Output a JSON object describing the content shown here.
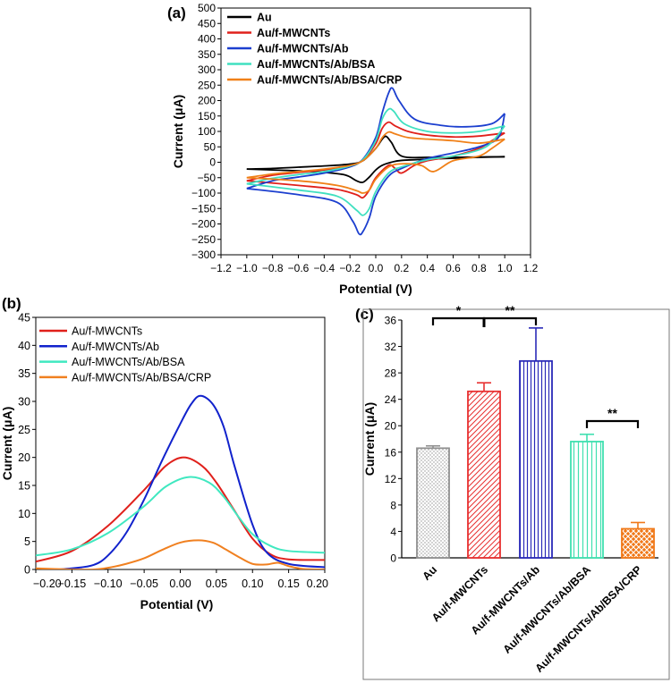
{
  "chart_data": [
    {
      "id": "a",
      "panel_label": "(a)",
      "type": "line",
      "title": "",
      "xlabel": "Potential (V)",
      "ylabel": "Current (μA)",
      "xlim": [
        -1.2,
        1.2
      ],
      "ylim": [
        -300,
        500
      ],
      "xticks": [
        "−1.2",
        "−1.0",
        "−0.8",
        "−0.6",
        "−0.4",
        "−0.2",
        "0.0",
        "0.2",
        "0.4",
        "0.6",
        "0.8",
        "1.0",
        "1.2"
      ],
      "yticks": [
        "−300",
        "−250",
        "−200",
        "−150",
        "−100",
        "−50",
        "0",
        "50",
        "100",
        "150",
        "200",
        "250",
        "300",
        "350",
        "400",
        "450",
        "500"
      ],
      "legend_position": "top-left",
      "series": [
        {
          "name": "Au",
          "color": "#000000",
          "forward": [
            [
              -1,
              -22
            ],
            [
              -0.8,
              -20
            ],
            [
              -0.6,
              -16
            ],
            [
              -0.4,
              -12
            ],
            [
              -0.2,
              -6
            ],
            [
              -0.1,
              5
            ],
            [
              0,
              45
            ],
            [
              0.05,
              75
            ],
            [
              0.08,
              84
            ],
            [
              0.12,
              65
            ],
            [
              0.2,
              20
            ],
            [
              0.4,
              16
            ],
            [
              0.6,
              16
            ],
            [
              0.8,
              17
            ],
            [
              1,
              18
            ]
          ],
          "reverse": [
            [
              1,
              18
            ],
            [
              0.8,
              16
            ],
            [
              0.6,
              13
            ],
            [
              0.4,
              10
            ],
            [
              0.2,
              6
            ],
            [
              0.12,
              0
            ],
            [
              0.05,
              -10
            ],
            [
              0,
              -25
            ],
            [
              -0.05,
              -48
            ],
            [
              -0.1,
              -65
            ],
            [
              -0.15,
              -60
            ],
            [
              -0.25,
              -40
            ],
            [
              -0.5,
              -30
            ],
            [
              -0.8,
              -25
            ],
            [
              -1,
              -22
            ]
          ]
        },
        {
          "name": "Au/f-MWCNTs",
          "color": "#e0201b",
          "forward": [
            [
              -1,
              -60
            ],
            [
              -0.8,
              -42
            ],
            [
              -0.6,
              -33
            ],
            [
              -0.4,
              -25
            ],
            [
              -0.2,
              -12
            ],
            [
              -0.1,
              8
            ],
            [
              0,
              60
            ],
            [
              0.05,
              110
            ],
            [
              0.1,
              130
            ],
            [
              0.15,
              118
            ],
            [
              0.25,
              100
            ],
            [
              0.4,
              88
            ],
            [
              0.6,
              82
            ],
            [
              0.8,
              85
            ],
            [
              1,
              95
            ]
          ],
          "reverse": [
            [
              1,
              95
            ],
            [
              0.9,
              70
            ],
            [
              0.8,
              45
            ],
            [
              0.6,
              20
            ],
            [
              0.4,
              5
            ],
            [
              0.3,
              -10
            ],
            [
              0.2,
              -35
            ],
            [
              0.15,
              -20
            ],
            [
              0.1,
              -10
            ],
            [
              0,
              -50
            ],
            [
              -0.05,
              -90
            ],
            [
              -0.1,
              -115
            ],
            [
              -0.15,
              -105
            ],
            [
              -0.3,
              -88
            ],
            [
              -0.6,
              -75
            ],
            [
              -1,
              -60
            ]
          ]
        },
        {
          "name": "Au/f-MWCNTs/Ab",
          "color": "#1c3fcf",
          "forward": [
            [
              -1,
              -85
            ],
            [
              -0.8,
              -60
            ],
            [
              -0.6,
              -48
            ],
            [
              -0.4,
              -35
            ],
            [
              -0.2,
              -15
            ],
            [
              -0.1,
              10
            ],
            [
              0,
              80
            ],
            [
              0.05,
              160
            ],
            [
              0.1,
              225
            ],
            [
              0.13,
              240
            ],
            [
              0.18,
              200
            ],
            [
              0.3,
              140
            ],
            [
              0.5,
              120
            ],
            [
              0.7,
              115
            ],
            [
              0.9,
              125
            ],
            [
              1,
              158
            ]
          ],
          "reverse": [
            [
              1,
              158
            ],
            [
              0.95,
              80
            ],
            [
              0.8,
              50
            ],
            [
              0.6,
              30
            ],
            [
              0.4,
              12
            ],
            [
              0.2,
              -20
            ],
            [
              0.1,
              -45
            ],
            [
              0,
              -110
            ],
            [
              -0.05,
              -180
            ],
            [
              -0.1,
              -225
            ],
            [
              -0.13,
              -232
            ],
            [
              -0.18,
              -190
            ],
            [
              -0.3,
              -130
            ],
            [
              -0.6,
              -105
            ],
            [
              -1,
              -85
            ]
          ]
        },
        {
          "name": "Au/f-MWCNTs/Ab/BSA",
          "color": "#40e0c0",
          "forward": [
            [
              -1,
              -70
            ],
            [
              -0.8,
              -52
            ],
            [
              -0.6,
              -40
            ],
            [
              -0.4,
              -30
            ],
            [
              -0.2,
              -12
            ],
            [
              -0.1,
              8
            ],
            [
              0,
              70
            ],
            [
              0.05,
              140
            ],
            [
              0.1,
              172
            ],
            [
              0.14,
              165
            ],
            [
              0.22,
              125
            ],
            [
              0.4,
              100
            ],
            [
              0.6,
              95
            ],
            [
              0.8,
              100
            ],
            [
              1,
              118
            ]
          ],
          "reverse": [
            [
              1,
              118
            ],
            [
              0.9,
              65
            ],
            [
              0.8,
              40
            ],
            [
              0.6,
              20
            ],
            [
              0.4,
              8
            ],
            [
              0.2,
              -15
            ],
            [
              0.1,
              -35
            ],
            [
              0,
              -95
            ],
            [
              -0.05,
              -150
            ],
            [
              -0.1,
              -172
            ],
            [
              -0.15,
              -155
            ],
            [
              -0.3,
              -110
            ],
            [
              -0.6,
              -90
            ],
            [
              -1,
              -70
            ]
          ]
        },
        {
          "name": "Au/f-MWCNTs/Ab/BSA/CRP",
          "color": "#f08018",
          "forward": [
            [
              -1,
              -50
            ],
            [
              -0.8,
              -38
            ],
            [
              -0.6,
              -30
            ],
            [
              -0.4,
              -22
            ],
            [
              -0.2,
              -10
            ],
            [
              -0.1,
              5
            ],
            [
              0,
              45
            ],
            [
              0.05,
              80
            ],
            [
              0.1,
              98
            ],
            [
              0.15,
              92
            ],
            [
              0.25,
              80
            ],
            [
              0.4,
              75
            ],
            [
              0.6,
              70
            ],
            [
              0.8,
              62
            ],
            [
              1,
              75
            ]
          ],
          "reverse": [
            [
              1,
              75
            ],
            [
              0.9,
              45
            ],
            [
              0.8,
              20
            ],
            [
              0.6,
              5
            ],
            [
              0.45,
              -30
            ],
            [
              0.35,
              -10
            ],
            [
              0.2,
              -5
            ],
            [
              0.1,
              -15
            ],
            [
              0,
              -55
            ],
            [
              -0.05,
              -90
            ],
            [
              -0.1,
              -100
            ],
            [
              -0.15,
              -92
            ],
            [
              -0.3,
              -75
            ],
            [
              -0.6,
              -60
            ],
            [
              -1,
              -50
            ]
          ]
        }
      ]
    },
    {
      "id": "b",
      "panel_label": "(b)",
      "type": "line",
      "title": "",
      "xlabel": "Potential (V)",
      "ylabel": "Current (μA)",
      "xlim": [
        -0.2,
        0.2
      ],
      "ylim": [
        0,
        45
      ],
      "xticks": [
        "−0.20",
        "−0.15",
        "−0.10",
        "−0.05",
        "0.00",
        "0.05",
        "0.10",
        "0.15",
        "0.20"
      ],
      "yticks": [
        "0",
        "5",
        "10",
        "15",
        "20",
        "25",
        "30",
        "35",
        "40",
        "45"
      ],
      "legend_position": "top-left",
      "series": [
        {
          "name": "Au/f-MWCNTs",
          "color": "#e0201b",
          "points": [
            [
              -0.2,
              1.4
            ],
            [
              -0.15,
              3.3
            ],
            [
              -0.1,
              7.8
            ],
            [
              -0.05,
              14.2
            ],
            [
              -0.02,
              18.5
            ],
            [
              0.005,
              20
            ],
            [
              0.03,
              18.5
            ],
            [
              0.05,
              15.5
            ],
            [
              0.075,
              10.5
            ],
            [
              0.1,
              5.5
            ],
            [
              0.125,
              2.7
            ],
            [
              0.15,
              1.8
            ],
            [
              0.2,
              1.7
            ]
          ]
        },
        {
          "name": "Au/f-MWCNTs/Ab",
          "color": "#1122cc",
          "points": [
            [
              -0.2,
              -0.3
            ],
            [
              -0.15,
              0.2
            ],
            [
              -0.12,
              0.8
            ],
            [
              -0.1,
              2.5
            ],
            [
              -0.075,
              6.5
            ],
            [
              -0.05,
              12.5
            ],
            [
              -0.025,
              19.5
            ],
            [
              0,
              26
            ],
            [
              0.015,
              29.5
            ],
            [
              0.028,
              31
            ],
            [
              0.045,
              29.5
            ],
            [
              0.06,
              25.5
            ],
            [
              0.075,
              18.5
            ],
            [
              0.1,
              8
            ],
            [
              0.12,
              3
            ],
            [
              0.15,
              1
            ],
            [
              0.2,
              0.4
            ]
          ]
        },
        {
          "name": "Au/f-MWCNTs/Ab/BSA",
          "color": "#40e8c0",
          "points": [
            [
              -0.2,
              2.5
            ],
            [
              -0.15,
              3.6
            ],
            [
              -0.1,
              6.5
            ],
            [
              -0.05,
              11.3
            ],
            [
              -0.02,
              14.8
            ],
            [
              0.012,
              16.5
            ],
            [
              0.04,
              15.5
            ],
            [
              0.06,
              13
            ],
            [
              0.08,
              9.5
            ],
            [
              0.1,
              6.3
            ],
            [
              0.125,
              4.2
            ],
            [
              0.15,
              3.3
            ],
            [
              0.2,
              3
            ]
          ]
        },
        {
          "name": "Au/f-MWCNTs/Ab/BSA/CRP",
          "color": "#f08020",
          "points": [
            [
              -0.2,
              0.2
            ],
            [
              -0.15,
              0
            ],
            [
              -0.12,
              0
            ],
            [
              -0.1,
              0.3
            ],
            [
              -0.075,
              1
            ],
            [
              -0.05,
              2
            ],
            [
              -0.025,
              3.5
            ],
            [
              0,
              4.8
            ],
            [
              0.025,
              5.2
            ],
            [
              0.045,
              4.8
            ],
            [
              0.06,
              3.8
            ],
            [
              0.08,
              2.3
            ],
            [
              0.1,
              1
            ],
            [
              0.12,
              0.9
            ],
            [
              0.135,
              1.2
            ],
            [
              0.15,
              0.6
            ],
            [
              0.17,
              0.1
            ],
            [
              0.2,
              0
            ]
          ]
        }
      ]
    },
    {
      "id": "c",
      "panel_label": "(c)",
      "type": "bar",
      "title": "",
      "xlabel": "",
      "ylabel": "Current (μA)",
      "ylim": [
        0,
        36
      ],
      "yticks": [
        "0",
        "4",
        "8",
        "12",
        "16",
        "20",
        "24",
        "28",
        "32",
        "36"
      ],
      "categories": [
        "Au",
        "Au/f-MWCNTs",
        "Au/f-MWCNTs/Ab",
        "Au/f-MWCNTs/Ab/BSA",
        "Au/f-MWCNTs/Ab/BSA/CRP"
      ],
      "values": [
        16.6,
        25.2,
        29.8,
        17.6,
        4.4
      ],
      "errors": [
        0.35,
        1.3,
        5.0,
        1.1,
        0.95
      ],
      "colors": [
        "#909090",
        "#e83030",
        "#2a2ab8",
        "#40e0b0",
        "#f07818"
      ],
      "patterns": [
        "dots",
        "diagonal",
        "vertical",
        "vertical-light",
        "crosshatch"
      ],
      "significance": [
        {
          "from": 0,
          "to": 1,
          "label": "*"
        },
        {
          "from": 1,
          "to": 2,
          "label": "**"
        },
        {
          "from": 3,
          "to": 4,
          "label": "**"
        }
      ]
    }
  ]
}
